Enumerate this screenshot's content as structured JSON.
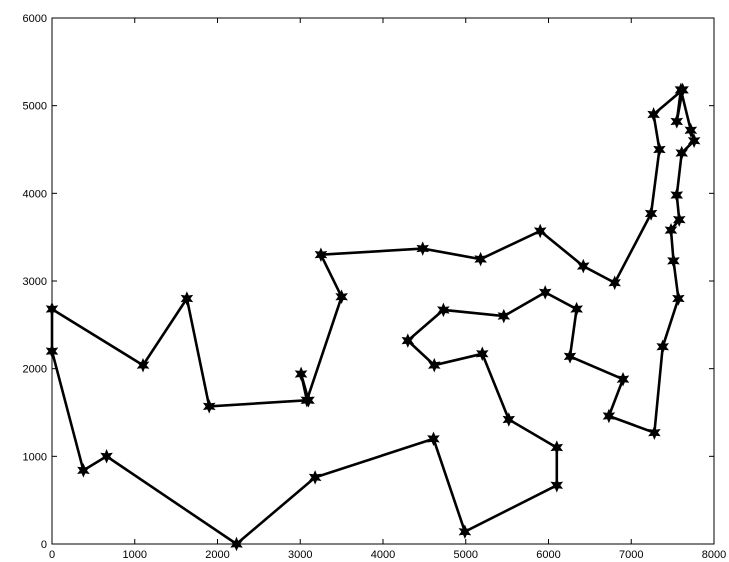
{
  "chart_data": {
    "type": "line",
    "title": "",
    "xlabel": "",
    "ylabel": "",
    "xlim": [
      0,
      8000
    ],
    "ylim": [
      0,
      6000
    ],
    "x_ticks": [
      0,
      1000,
      2000,
      3000,
      4000,
      5000,
      6000,
      7000,
      8000
    ],
    "y_ticks": [
      0,
      1000,
      2000,
      3000,
      4000,
      5000,
      6000
    ],
    "grid": false,
    "legend": "none",
    "marker": "hexagram",
    "line_color": "#000000",
    "series": [
      {
        "x": [
          0,
          0,
          380,
          660,
          2230,
          3180,
          4610,
          4990,
          6100,
          6100,
          5520,
          5200,
          4620,
          4300,
          4730,
          5460,
          5960,
          6340,
          6260,
          6900,
          6730,
          7280,
          7380,
          7570,
          7510,
          7480,
          7580,
          7550,
          7610,
          7760,
          7720,
          7600,
          7550,
          7620,
          7270,
          7340,
          7240,
          6800,
          6420,
          5900,
          5180,
          4480,
          3250,
          3500,
          3080,
          3010,
          3100,
          1900,
          1630,
          1100,
          0
        ],
        "y": [
          2680,
          2200,
          840,
          1000,
          0,
          760,
          1200,
          140,
          670,
          1100,
          1420,
          2170,
          2040,
          2320,
          2670,
          2600,
          2870,
          2680,
          2140,
          1880,
          1460,
          1270,
          2250,
          2800,
          3230,
          3580,
          3700,
          3980,
          4460,
          4600,
          4720,
          5180,
          4820,
          5180,
          4900,
          4500,
          3770,
          2980,
          3170,
          3570,
          3250,
          3370,
          3300,
          2820,
          1640,
          1940,
          1640,
          1570,
          2800,
          2040,
          2680
        ]
      }
    ]
  }
}
